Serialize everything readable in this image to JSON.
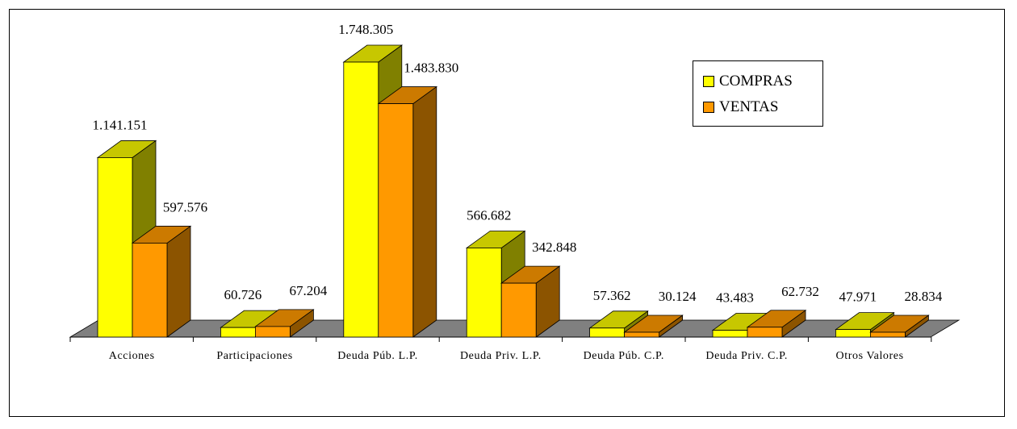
{
  "chart_data": {
    "type": "bar",
    "categories": [
      "Acciones",
      "Participaciones",
      "Deuda Púb. L.P.",
      "Deuda Priv. L.P.",
      "Deuda Púb. C.P.",
      "Deuda Priv. C.P.",
      "Otros Valores"
    ],
    "series": [
      {
        "name": "COMPRAS",
        "color": "#FFFF00",
        "values": [
          1141151,
          60726,
          1748305,
          566682,
          57362,
          43483,
          47971
        ],
        "labels": [
          "1.141.151",
          "60.726",
          "1.748.305",
          "566.682",
          "57.362",
          "43.483",
          "47.971"
        ]
      },
      {
        "name": "VENTAS",
        "color": "#FF9900",
        "values": [
          597576,
          67204,
          1483830,
          342848,
          30124,
          62732,
          28834
        ],
        "labels": [
          "597.576",
          "67.204",
          "1.483.830",
          "342.848",
          "30.124",
          "62.732",
          "28.834"
        ]
      }
    ],
    "title": "",
    "xlabel": "",
    "ylabel": "",
    "ylim": [
      0,
      1850000
    ],
    "grid": false,
    "legend_position": "top-right",
    "floor_color": "#808080"
  }
}
